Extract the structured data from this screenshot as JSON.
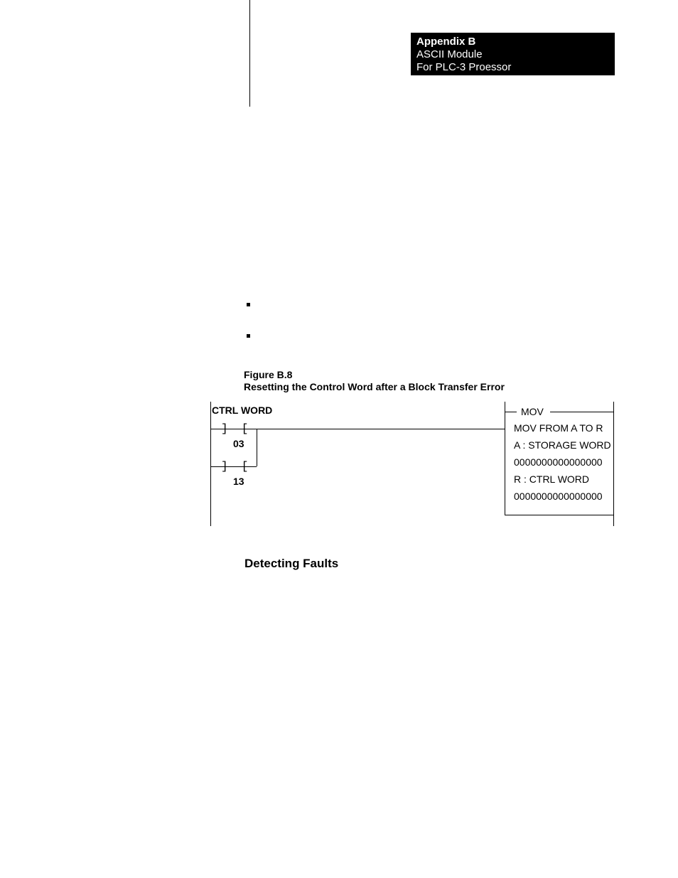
{
  "header": {
    "line1": "Appendix B",
    "line2": "ASCII Module",
    "line3": "For PLC-3 Proessor"
  },
  "figure": {
    "label": "Figure B.8",
    "title": "Resetting the Control Word after a Block Transfer Error"
  },
  "diagram": {
    "ctrl_word": "CTRL WORD",
    "contact_glyph": "]  [",
    "contact1_num": "03",
    "contact2_num": "13",
    "box": {
      "title": "MOV",
      "line1": "MOV FROM A  TO  R",
      "line2": "A   :   STORAGE WORD",
      "line3": "0000000000000000",
      "line4": "R   :   CTRL WORD",
      "line5": "0000000000000000"
    }
  },
  "subheader": "Detecting Faults",
  "colors": {
    "bg": "#ffffff",
    "ink": "#000000",
    "header_bg": "#000000",
    "header_fg": "#ffffff"
  },
  "fonts": {
    "body_size_pt": 14,
    "header_size_pt": 15,
    "subheader_size_pt": 17,
    "figcap_size_pt": 14
  }
}
